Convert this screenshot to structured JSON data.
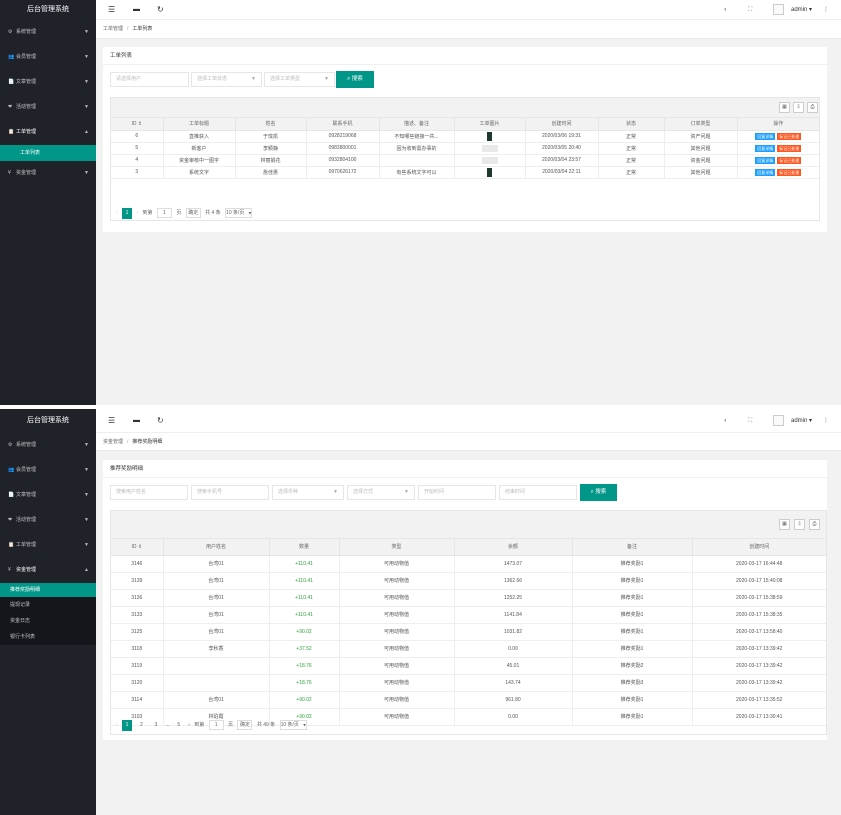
{
  "shot1": {
    "sidebar": {
      "title": "后台管理系统",
      "items": [
        {
          "icon": "⚙",
          "label": "系统管理"
        },
        {
          "icon": "👥",
          "label": "会员管理"
        },
        {
          "icon": "📄",
          "label": "文章管理"
        },
        {
          "icon": "❤",
          "label": "活动管理"
        },
        {
          "icon": "📋",
          "label": "工单管理"
        },
        {
          "icon": "¥",
          "label": "资金管理"
        }
      ],
      "subitems": [
        "工单列表"
      ]
    },
    "header": {
      "user": "admin"
    },
    "breadcrumb": [
      "工单管理",
      "工单列表"
    ],
    "card_title": "工单列表",
    "filters": {
      "user_placeholder": "请选择用户",
      "type_placeholder": "选择工单状态",
      "status_placeholder": "选择工单类型",
      "search_label": "搜索"
    },
    "table": {
      "columns": [
        "ID",
        "工单标题",
        "姓名",
        "联系手机",
        "描述、备注",
        "工单图片",
        "创建时间",
        "状态",
        "订单类型",
        "操作"
      ],
      "rows": [
        {
          "id": "6",
          "title": "直推获入",
          "name": "于珑凯",
          "phone": "0928219068",
          "desc": "不知哪些链接一共...",
          "img": "dark",
          "time": "2020/03/06 19:31",
          "status": "正常",
          "type": "资产问题"
        },
        {
          "id": "5",
          "title": "新客户",
          "name": "李颖静",
          "phone": "0983800001",
          "desc": "因为收到需办事的",
          "img": "light",
          "time": "2020/03/05 20:40",
          "status": "正常",
          "type": "其他问题"
        },
        {
          "id": "4",
          "title": "资金审核中一图字",
          "name": "林丽娟花",
          "phone": "0932804100",
          "desc": "",
          "img": "light",
          "time": "2020/03/04 23:57",
          "status": "正常",
          "type": "资金问题"
        },
        {
          "id": "3",
          "title": "系统文字",
          "name": "詹佳惠",
          "phone": "0970626172",
          "desc": "有些系统文字可以",
          "img": "dark",
          "time": "2020/03/04 22:11",
          "status": "正常",
          "type": "其他问题"
        }
      ],
      "action_process": "回复详情",
      "action_close": "标记已处理"
    },
    "pager": {
      "current": "1",
      "goto_label": "到第",
      "page_value": "1",
      "page_unit": "页",
      "confirm": "确定",
      "total": "共 4 条",
      "page_size": "10 条/页"
    }
  },
  "shot2": {
    "sidebar": {
      "title": "后台管理系统",
      "items": [
        {
          "icon": "⚙",
          "label": "系统管理"
        },
        {
          "icon": "👥",
          "label": "会员管理"
        },
        {
          "icon": "📄",
          "label": "文章管理"
        },
        {
          "icon": "❤",
          "label": "活动管理"
        },
        {
          "icon": "📋",
          "label": "工单管理"
        },
        {
          "icon": "¥",
          "label": "资金管理"
        }
      ],
      "subitems": [
        "推荐奖励明细",
        "提现记录",
        "资金日志",
        "银行卡列表"
      ]
    },
    "header": {
      "user": "admin"
    },
    "breadcrumb": [
      "资金管理",
      "推荐奖励明细"
    ],
    "card_title": "推荐奖励明细",
    "filters": {
      "f1": "搜索用户姓名",
      "f2": "搜索手机号",
      "f3": "选择币种",
      "f4": "选择方式",
      "f5": "开始时间",
      "f6": "结束时间",
      "search_label": "搜索"
    },
    "table": {
      "columns": [
        "ID",
        "用户姓名",
        "数量",
        "类型",
        "余额",
        "备注",
        "创建时间"
      ],
      "rows": [
        {
          "id": "3146",
          "name": "台湾01",
          "amount": "+110.41",
          "type": "可用动物值",
          "balance": "1473.07",
          "note": "推荐奖励1",
          "time": "2020-03-17 16:44:48"
        },
        {
          "id": "3139",
          "name": "台湾01",
          "amount": "+110.41",
          "type": "可用动物值",
          "balance": "1362.66",
          "note": "推荐奖励1",
          "time": "2020-03-17 15:40:08"
        },
        {
          "id": "3136",
          "name": "台湾01",
          "amount": "+110.41",
          "type": "可用动物值",
          "balance": "1252.25",
          "note": "推荐奖励1",
          "time": "2020-03-17 15:38:59"
        },
        {
          "id": "3133",
          "name": "台湾01",
          "amount": "+110.41",
          "type": "可用动物值",
          "balance": "1141.84",
          "note": "推荐奖励1",
          "time": "2020-03-17 15:38:35"
        },
        {
          "id": "3125",
          "name": "台湾01",
          "amount": "+90.02",
          "type": "可用动物值",
          "balance": "1031.82",
          "note": "推荐奖励1",
          "time": "2020-03-17 13:58:40"
        },
        {
          "id": "3118",
          "name": "李秋香",
          "amount": "+37.52",
          "type": "可用动物值",
          "balance": "0.00",
          "note": "推荐奖励1",
          "time": "2020-03-17 13:39:42"
        },
        {
          "id": "3119",
          "name": "",
          "amount": "+18.76",
          "type": "可用动物值",
          "balance": "45.01",
          "note": "推荐奖励2",
          "time": "2020-03-17 13:39:42"
        },
        {
          "id": "3120",
          "name": "",
          "amount": "+18.76",
          "type": "可用动物值",
          "balance": "143.74",
          "note": "推荐奖励3",
          "time": "2020-03-17 13:39:42"
        },
        {
          "id": "3114",
          "name": "台湾01",
          "amount": "+90.02",
          "type": "可用动物值",
          "balance": "961.80",
          "note": "推荐奖励1",
          "time": "2020-03-17 13:35:52"
        },
        {
          "id": "3103",
          "name": "林珀霞",
          "amount": "+90.02",
          "type": "可用动物值",
          "balance": "0.00",
          "note": "推荐奖励1",
          "time": "2020-03-17 13:30:41"
        }
      ]
    },
    "pager": {
      "pages": [
        "1",
        "2",
        "3",
        "...",
        "5"
      ],
      "goto_label": "到第",
      "page_value": "1",
      "page_unit": "页",
      "confirm": "确定",
      "total": "共 49 条",
      "page_size": "10 条/页"
    }
  }
}
